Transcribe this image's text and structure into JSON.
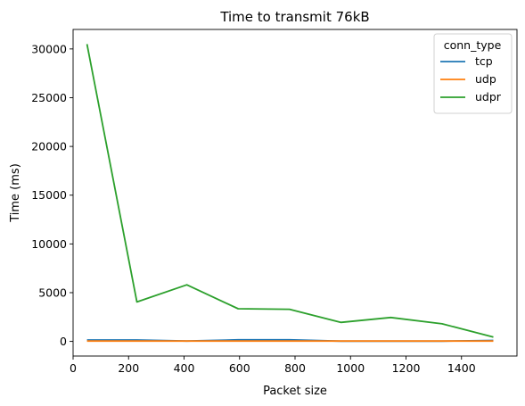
{
  "chart_data": {
    "type": "line",
    "title": "Time to transmit 76kB",
    "xlabel": "Packet size",
    "ylabel": "Time (ms)",
    "xlim": [
      0,
      1600
    ],
    "ylim": [
      -1500,
      32000
    ],
    "xticks": [
      0,
      200,
      400,
      600,
      800,
      1000,
      1200,
      1400
    ],
    "yticks": [
      0,
      5000,
      10000,
      15000,
      20000,
      25000,
      30000
    ],
    "grid": false,
    "legend": {
      "title": "conn_type",
      "placement": "top-right"
    },
    "x": [
      50,
      230,
      410,
      595,
      780,
      965,
      1145,
      1330,
      1515
    ],
    "series": [
      {
        "name": "tcp",
        "color": "#1f77b4",
        "values": [
          150,
          150,
          40,
          170,
          170,
          30,
          30,
          30,
          100
        ]
      },
      {
        "name": "udp",
        "color": "#ff7f0e",
        "values": [
          40,
          40,
          40,
          40,
          40,
          40,
          40,
          40,
          40
        ]
      },
      {
        "name": "udpr",
        "color": "#2ca02c",
        "values": [
          30500,
          4050,
          5800,
          3350,
          3300,
          1950,
          2450,
          1800,
          450
        ]
      }
    ]
  }
}
